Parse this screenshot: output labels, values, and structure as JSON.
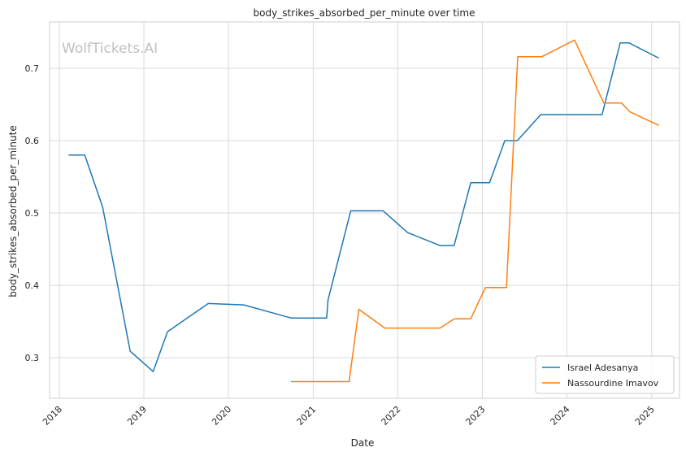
{
  "watermark": "WolfTickets.AI",
  "chart_data": {
    "type": "line",
    "title": "body_strikes_absorbed_per_minute over time",
    "xlabel": "Date",
    "ylabel": "body_strikes_absorbed_per_minute",
    "x_ticks": [
      "2018",
      "2019",
      "2020",
      "2021",
      "2022",
      "2023",
      "2024",
      "2025"
    ],
    "y_ticks": [
      "0.3",
      "0.4",
      "0.5",
      "0.6",
      "0.7"
    ],
    "xlim": [
      "2017-11-20",
      "2025-05-01"
    ],
    "ylim": [
      0.244,
      0.764
    ],
    "grid": true,
    "legend_position": "lower right",
    "series": [
      {
        "name": "Israel Adesanya",
        "color": "#1f77b4",
        "points": [
          [
            "2018-02-10",
            0.58
          ],
          [
            "2018-04-21",
            0.58
          ],
          [
            "2018-07-07",
            0.508
          ],
          [
            "2018-11-03",
            0.309
          ],
          [
            "2019-02-10",
            0.281
          ],
          [
            "2019-04-13",
            0.336
          ],
          [
            "2019-10-06",
            0.375
          ],
          [
            "2020-03-07",
            0.373
          ],
          [
            "2020-09-27",
            0.355
          ],
          [
            "2021-02-28",
            0.355
          ],
          [
            "2021-03-06",
            0.38
          ],
          [
            "2021-06-12",
            0.503
          ],
          [
            "2021-10-30",
            0.503
          ],
          [
            "2022-02-12",
            0.473
          ],
          [
            "2022-07-02",
            0.455
          ],
          [
            "2022-09-01",
            0.455
          ],
          [
            "2022-11-12",
            0.542
          ],
          [
            "2023-02-01",
            0.542
          ],
          [
            "2023-04-08",
            0.6
          ],
          [
            "2023-06-01",
            0.6
          ],
          [
            "2023-09-10",
            0.636
          ],
          [
            "2024-06-01",
            0.636
          ],
          [
            "2024-08-18",
            0.735
          ],
          [
            "2024-09-25",
            0.735
          ],
          [
            "2025-02-01",
            0.714
          ]
        ]
      },
      {
        "name": "Nassourdine Imavov",
        "color": "#ff7f0e",
        "points": [
          [
            "2020-09-27",
            0.267
          ],
          [
            "2021-06-05",
            0.267
          ],
          [
            "2021-07-17",
            0.367
          ],
          [
            "2021-11-06",
            0.341
          ],
          [
            "2022-07-02",
            0.341
          ],
          [
            "2022-09-03",
            0.354
          ],
          [
            "2022-11-12",
            0.354
          ],
          [
            "2023-01-14",
            0.397
          ],
          [
            "2023-04-15",
            0.397
          ],
          [
            "2023-06-03",
            0.716
          ],
          [
            "2023-09-15",
            0.716
          ],
          [
            "2024-02-03",
            0.739
          ],
          [
            "2024-06-08",
            0.652
          ],
          [
            "2024-08-24",
            0.652
          ],
          [
            "2024-09-28",
            0.64
          ],
          [
            "2025-02-01",
            0.621
          ]
        ]
      }
    ]
  }
}
